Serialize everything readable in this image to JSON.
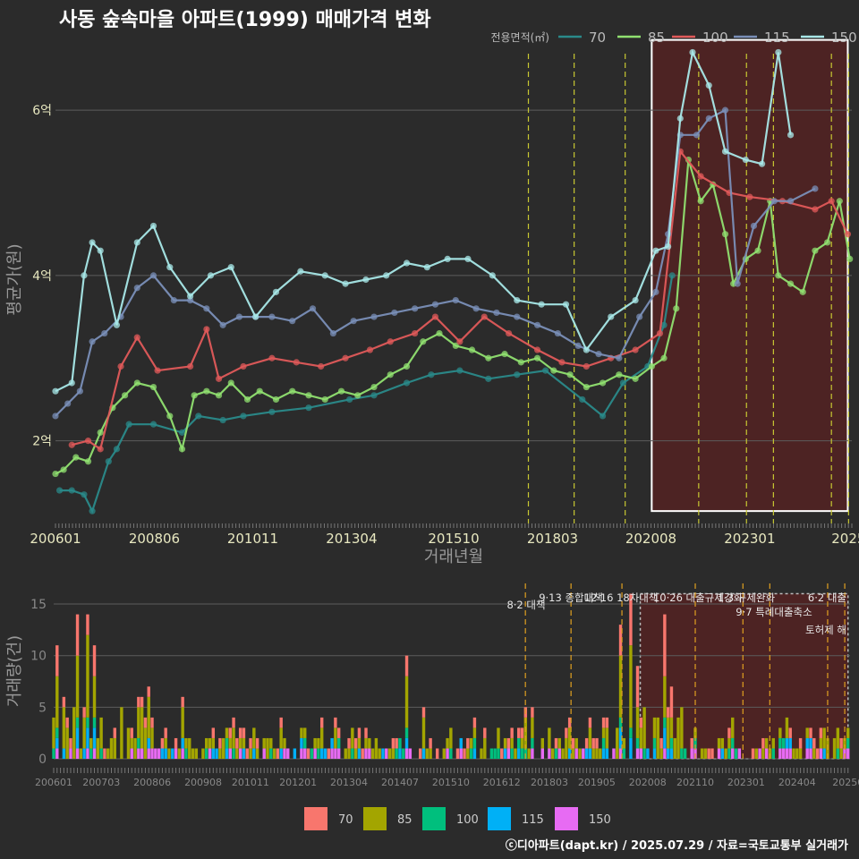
{
  "title": "사동 숲속마을 아파트(1999) 매매가격 변화",
  "footer": "ⓒ디아파트(dapt.kr) / 2025.07.29 / 자료=국토교통부 실거래가",
  "colors": {
    "background": "#2b2b2b",
    "highlight_fill": "#5a2222",
    "policy_line": "#c8c832",
    "policy_line_bottom": "#e0a020"
  },
  "chart_data": [
    {
      "type": "line",
      "title": "사동 숲속마을 아파트(1999) 매매가격 변화",
      "xlabel": "거래년월",
      "ylabel": "평균가(원)",
      "legend_title": "전용면적(㎡)",
      "legend_position": "top-right",
      "x_range": [
        2006.0,
        2025.5
      ],
      "ylim": [
        1.0,
        6.9
      ],
      "y_ticks": [
        {
          "v": 2,
          "label": "2억"
        },
        {
          "v": 4,
          "label": "4억"
        },
        {
          "v": 6,
          "label": "6억"
        }
      ],
      "x_ticks": [
        {
          "t": 2006.0,
          "label": "200601"
        },
        {
          "t": 2008.42,
          "label": "200806"
        },
        {
          "t": 2010.83,
          "label": "201011"
        },
        {
          "t": 2013.25,
          "label": "201304"
        },
        {
          "t": 2015.75,
          "label": "201510"
        },
        {
          "t": 2018.17,
          "label": "201803"
        },
        {
          "t": 2020.58,
          "label": "202008"
        },
        {
          "t": 2023.0,
          "label": "202301"
        },
        {
          "t": 2025.42,
          "label": "2025"
        }
      ],
      "policy_lines": [
        2017.58,
        2018.7,
        2019.95,
        2021.75,
        2022.92,
        2023.58,
        2025.0,
        2025.42
      ],
      "highlight": {
        "start": 2020.6,
        "end": 2025.4
      },
      "series": [
        {
          "name": "70",
          "color": "#2a8a8a",
          "x": [
            2006.1,
            2006.4,
            2006.7,
            2006.9,
            2007.3,
            2007.5,
            2007.8,
            2008.4,
            2009.1,
            2009.5,
            2010.1,
            2010.6,
            2011.3,
            2012.2,
            2013.2,
            2013.8,
            2014.6,
            2015.2,
            2015.9,
            2016.6,
            2017.3,
            2018.0,
            2018.9,
            2019.4,
            2019.9,
            2020.5,
            2020.9,
            2021.1
          ],
          "y": [
            1.4,
            1.4,
            1.35,
            1.15,
            1.75,
            1.9,
            2.2,
            2.2,
            2.1,
            2.3,
            2.25,
            2.3,
            2.35,
            2.4,
            2.5,
            2.55,
            2.7,
            2.8,
            2.85,
            2.75,
            2.8,
            2.85,
            2.5,
            2.3,
            2.7,
            2.9,
            3.4,
            4.0
          ]
        },
        {
          "name": "85",
          "color": "#90e070",
          "x": [
            2006.0,
            2006.2,
            2006.5,
            2006.8,
            2007.1,
            2007.4,
            2007.7,
            2008.0,
            2008.4,
            2008.8,
            2009.1,
            2009.4,
            2009.7,
            2010.0,
            2010.3,
            2010.7,
            2011.0,
            2011.4,
            2011.8,
            2012.2,
            2012.6,
            2013.0,
            2013.4,
            2013.8,
            2014.2,
            2014.6,
            2015.0,
            2015.4,
            2015.8,
            2016.2,
            2016.6,
            2017.0,
            2017.4,
            2017.8,
            2018.2,
            2018.6,
            2019.0,
            2019.4,
            2019.8,
            2020.2,
            2020.6,
            2020.9,
            2021.2,
            2021.5,
            2021.8,
            2022.1,
            2022.4,
            2022.6,
            2022.9,
            2023.2,
            2023.5,
            2023.7,
            2024.0,
            2024.3,
            2024.6,
            2024.9,
            2025.2,
            2025.45
          ],
          "y": [
            1.6,
            1.65,
            1.8,
            1.75,
            2.1,
            2.4,
            2.55,
            2.7,
            2.65,
            2.3,
            1.9,
            2.55,
            2.6,
            2.55,
            2.7,
            2.5,
            2.6,
            2.5,
            2.6,
            2.55,
            2.5,
            2.6,
            2.55,
            2.65,
            2.8,
            2.9,
            3.2,
            3.3,
            3.15,
            3.1,
            3.0,
            3.05,
            2.95,
            3.0,
            2.85,
            2.8,
            2.65,
            2.7,
            2.8,
            2.75,
            2.9,
            3.0,
            3.6,
            5.4,
            4.9,
            5.1,
            4.5,
            3.9,
            4.2,
            4.3,
            4.9,
            4.0,
            3.9,
            3.8,
            4.3,
            4.4,
            4.9,
            4.2
          ]
        },
        {
          "name": "100",
          "color": "#e05a5a",
          "x": [
            2006.4,
            2006.8,
            2007.1,
            2007.6,
            2008.0,
            2008.5,
            2009.3,
            2009.7,
            2010.0,
            2010.6,
            2011.3,
            2011.9,
            2012.5,
            2013.1,
            2013.7,
            2014.2,
            2014.8,
            2015.3,
            2015.9,
            2016.5,
            2017.1,
            2017.8,
            2018.4,
            2019.0,
            2019.6,
            2020.2,
            2020.8,
            2021.3,
            2021.8,
            2022.5,
            2023.0,
            2023.8,
            2024.6,
            2025.0,
            2025.4
          ],
          "y": [
            1.95,
            2.0,
            1.9,
            2.9,
            3.25,
            2.85,
            2.9,
            3.35,
            2.75,
            2.9,
            3.0,
            2.95,
            2.9,
            3.0,
            3.1,
            3.2,
            3.3,
            3.5,
            3.2,
            3.5,
            3.3,
            3.1,
            2.95,
            2.9,
            3.0,
            3.1,
            3.3,
            5.5,
            5.2,
            5.0,
            4.95,
            4.9,
            4.8,
            4.9,
            4.5
          ]
        },
        {
          "name": "115",
          "color": "#7a8fb8",
          "x": [
            2006.0,
            2006.3,
            2006.6,
            2006.9,
            2007.2,
            2007.6,
            2008.0,
            2008.4,
            2008.9,
            2009.3,
            2009.7,
            2010.1,
            2010.5,
            2010.9,
            2011.3,
            2011.8,
            2012.3,
            2012.8,
            2013.3,
            2013.8,
            2014.3,
            2014.8,
            2015.3,
            2015.8,
            2016.3,
            2016.8,
            2017.3,
            2017.8,
            2018.3,
            2018.8,
            2019.3,
            2019.8,
            2020.3,
            2020.7,
            2021.0,
            2021.3,
            2021.7,
            2022.0,
            2022.4,
            2022.7,
            2023.1,
            2023.6,
            2024.0,
            2024.6
          ],
          "y": [
            2.3,
            2.45,
            2.6,
            3.2,
            3.3,
            3.5,
            3.85,
            4.0,
            3.7,
            3.7,
            3.6,
            3.4,
            3.5,
            3.5,
            3.5,
            3.45,
            3.6,
            3.3,
            3.45,
            3.5,
            3.55,
            3.6,
            3.65,
            3.7,
            3.6,
            3.55,
            3.5,
            3.4,
            3.3,
            3.15,
            3.05,
            3.0,
            3.5,
            3.8,
            4.5,
            5.7,
            5.7,
            5.9,
            6.0,
            3.9,
            4.6,
            4.9,
            4.9,
            5.05
          ]
        },
        {
          "name": "150",
          "color": "#a8e8e8",
          "x": [
            2006.0,
            2006.4,
            2006.7,
            2006.9,
            2007.1,
            2007.5,
            2008.0,
            2008.4,
            2008.8,
            2009.3,
            2009.8,
            2010.3,
            2010.9,
            2011.4,
            2012.0,
            2012.6,
            2013.1,
            2013.6,
            2014.1,
            2014.6,
            2015.1,
            2015.6,
            2016.1,
            2016.7,
            2017.3,
            2017.9,
            2018.5,
            2019.0,
            2019.6,
            2020.2,
            2020.7,
            2021.0,
            2021.3,
            2021.6,
            2022.0,
            2022.4,
            2022.9,
            2023.3,
            2023.7,
            2024.0
          ],
          "y": [
            2.6,
            2.7,
            4.0,
            4.4,
            4.3,
            3.4,
            4.4,
            4.6,
            4.1,
            3.75,
            4.0,
            4.1,
            3.5,
            3.8,
            4.05,
            4.0,
            3.9,
            3.95,
            4.0,
            4.15,
            4.1,
            4.2,
            4.2,
            4.0,
            3.7,
            3.65,
            3.65,
            3.1,
            3.5,
            3.7,
            4.3,
            4.35,
            5.9,
            6.7,
            6.3,
            5.5,
            5.4,
            5.35,
            6.7,
            5.7
          ]
        }
      ]
    },
    {
      "type": "bar",
      "xlabel": "",
      "ylabel": "거래량(건)",
      "ylim": [
        0,
        17
      ],
      "y_ticks": [
        0,
        5,
        10,
        15
      ],
      "x_ticks": [
        {
          "t": 2006.0,
          "label": "200601"
        },
        {
          "t": 2007.17,
          "label": "200703"
        },
        {
          "t": 2008.42,
          "label": "200806"
        },
        {
          "t": 2009.67,
          "label": "200908"
        },
        {
          "t": 2010.83,
          "label": "201011"
        },
        {
          "t": 2012.0,
          "label": "201201"
        },
        {
          "t": 2013.25,
          "label": "201304"
        },
        {
          "t": 2014.5,
          "label": "201407"
        },
        {
          "t": 2015.75,
          "label": "201510"
        },
        {
          "t": 2017.0,
          "label": "201612"
        },
        {
          "t": 2018.17,
          "label": "201803"
        },
        {
          "t": 2019.33,
          "label": "201905"
        },
        {
          "t": 2020.58,
          "label": "202008"
        },
        {
          "t": 2021.75,
          "label": "202110"
        },
        {
          "t": 2023.0,
          "label": "202301"
        },
        {
          "t": 2024.25,
          "label": "202404"
        },
        {
          "t": 2025.5,
          "label": "20250"
        }
      ],
      "series_names": [
        "70",
        "85",
        "100",
        "115",
        "150"
      ],
      "series_colors": [
        "#f8766d",
        "#a3a500",
        "#00bf7d",
        "#00b0f6",
        "#e76bf3"
      ],
      "peaks": [
        {
          "t": 2006.1,
          "v": [
            3,
            5,
            1,
            1,
            1
          ]
        },
        {
          "t": 2006.6,
          "v": [
            4,
            6,
            1,
            2,
            1
          ]
        },
        {
          "t": 2006.8,
          "v": [
            2,
            8,
            1,
            2,
            1
          ]
        },
        {
          "t": 2007.0,
          "v": [
            3,
            4,
            1,
            2,
            1
          ]
        },
        {
          "t": 2007.5,
          "v": [
            1,
            2,
            0,
            0,
            0
          ]
        },
        {
          "t": 2008.1,
          "v": [
            1,
            3,
            1,
            0,
            1
          ]
        },
        {
          "t": 2009.2,
          "v": [
            1,
            3,
            0,
            1,
            1
          ]
        },
        {
          "t": 2010.4,
          "v": [
            1,
            2,
            1,
            0,
            0
          ]
        },
        {
          "t": 2011.6,
          "v": [
            1,
            2,
            0,
            1,
            0
          ]
        },
        {
          "t": 2012.9,
          "v": [
            1,
            2,
            0,
            0,
            1
          ]
        },
        {
          "t": 2014.7,
          "v": [
            2,
            5,
            1,
            1,
            1
          ]
        },
        {
          "t": 2015.1,
          "v": [
            1,
            3,
            0,
            1,
            0
          ]
        },
        {
          "t": 2016.6,
          "v": [
            1,
            2,
            0,
            0,
            0
          ]
        },
        {
          "t": 2017.6,
          "v": [
            1,
            3,
            1,
            0,
            0
          ]
        },
        {
          "t": 2018.7,
          "v": [
            1,
            2,
            0,
            1,
            0
          ]
        },
        {
          "t": 2019.95,
          "v": [
            3,
            6,
            1,
            2,
            1
          ]
        },
        {
          "t": 2020.2,
          "v": [
            5,
            8,
            1,
            2,
            0
          ]
        },
        {
          "t": 2020.35,
          "v": [
            4,
            3,
            1,
            0,
            1
          ]
        },
        {
          "t": 2021.0,
          "v": [
            6,
            4,
            1,
            2,
            1
          ]
        },
        {
          "t": 2021.2,
          "v": [
            3,
            2,
            1,
            1,
            0
          ]
        },
        {
          "t": 2023.4,
          "v": [
            1,
            1,
            0,
            0,
            0
          ]
        },
        {
          "t": 2025.3,
          "v": [
            1,
            1,
            0,
            0,
            0
          ]
        }
      ],
      "annotations": [
        {
          "t": 2017.58,
          "label": "8·2 대책"
        },
        {
          "t": 2018.7,
          "label": "9·13 종합대책"
        },
        {
          "t": 2019.95,
          "label": "12·16 18차대책"
        },
        {
          "t": 2021.75,
          "label": "10·26 대출규제강화"
        },
        {
          "t": 2022.92,
          "label": "1·3 규제완화"
        },
        {
          "t": 2023.58,
          "label": "9·7 특례대출축소"
        },
        {
          "t": 2025.0,
          "label": "토허제 해"
        },
        {
          "t": 2025.42,
          "label": "6·2 대출"
        }
      ],
      "highlight": {
        "start": 2020.4,
        "end": 2025.5
      }
    }
  ],
  "legend_bottom": [
    "70",
    "85",
    "100",
    "115",
    "150"
  ]
}
